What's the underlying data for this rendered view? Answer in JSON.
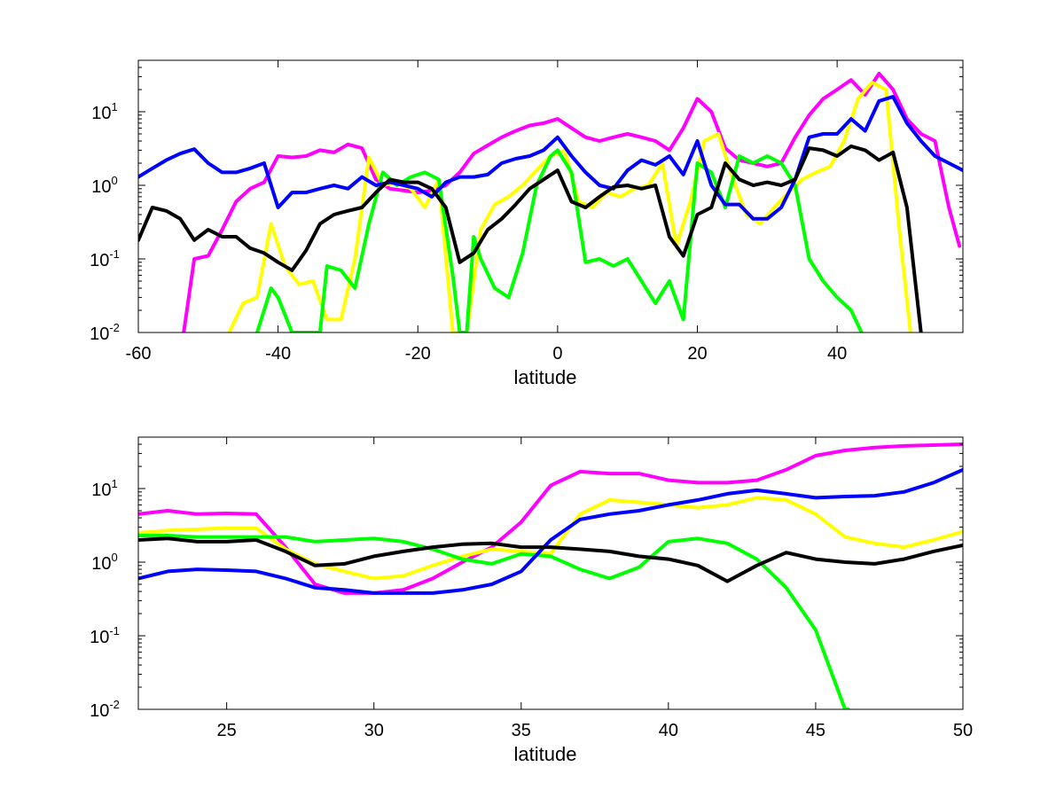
{
  "chart_data": [
    {
      "type": "line",
      "xlabel": "latitude",
      "ylabel": "",
      "title": "",
      "xlim": [
        -60,
        58
      ],
      "ylim": [
        0.01,
        50
      ],
      "yscale": "log",
      "grid": false,
      "x_ticks": [
        {
          "value": -60,
          "label": "-60"
        },
        {
          "value": -40,
          "label": "-40"
        },
        {
          "value": -20,
          "label": "-20"
        },
        {
          "value": 0,
          "label": "0"
        },
        {
          "value": 20,
          "label": "20"
        },
        {
          "value": 40,
          "label": "40"
        }
      ],
      "y_ticks": [
        {
          "value": 0.01,
          "base": "10",
          "exp": "-2"
        },
        {
          "value": 0.1,
          "base": "10",
          "exp": "-1"
        },
        {
          "value": 1,
          "base": "10",
          "exp": "0"
        },
        {
          "value": 10,
          "base": "10",
          "exp": "1"
        }
      ],
      "series": [
        {
          "color": "#ff00ff",
          "x": [
            -53.5,
            -52,
            -50,
            -48,
            -46,
            -44,
            -42,
            -40,
            -38,
            -36,
            -34,
            -32,
            -30,
            -28,
            -26,
            -24,
            -22,
            -20,
            -18,
            -16,
            -14,
            -12,
            -10,
            -8,
            -6,
            -4,
            -2,
            0,
            2,
            4,
            6,
            8,
            10,
            12,
            14,
            16,
            18,
            20,
            22,
            24,
            26,
            28,
            30,
            32,
            34,
            36,
            38,
            40,
            42,
            44,
            46,
            48,
            50,
            52,
            54,
            56,
            57.5
          ],
          "y": [
            0.01,
            0.1,
            0.11,
            0.25,
            0.6,
            0.9,
            1.1,
            2.5,
            2.4,
            2.5,
            3.0,
            2.8,
            3.6,
            3.2,
            1.2,
            0.9,
            0.85,
            0.8,
            0.85,
            1.0,
            1.5,
            2.7,
            3.5,
            4.5,
            5.5,
            6.5,
            7.0,
            8.0,
            6.0,
            4.5,
            4.0,
            4.5,
            5.0,
            4.5,
            4.0,
            3.0,
            6.0,
            15.0,
            10.0,
            3.2,
            2.2,
            2.0,
            1.8,
            2.0,
            4.5,
            9.0,
            15.0,
            20.0,
            27.0,
            17.0,
            33.0,
            20.0,
            8.0,
            5.0,
            4.0,
            0.5,
            0.15
          ]
        },
        {
          "color": "#ffff00",
          "x": [
            -47,
            -45,
            -43,
            -41,
            -39,
            -37,
            -35,
            -33,
            -31,
            -29,
            -27,
            -25,
            -23,
            -21,
            -19,
            -17,
            -15,
            -13,
            -11,
            -9,
            -7,
            -5,
            -3,
            -1,
            1,
            3,
            5,
            7,
            9,
            11,
            13,
            15,
            17,
            19,
            21,
            23,
            25,
            27,
            29,
            31,
            33,
            35,
            37,
            39,
            41,
            43,
            45,
            47,
            49,
            50.5
          ],
          "y": [
            0.01,
            0.025,
            0.03,
            0.3,
            0.08,
            0.045,
            0.05,
            0.015,
            0.015,
            0.1,
            2.4,
            1.0,
            1.1,
            0.9,
            0.5,
            1.2,
            0.01,
            0.01,
            0.25,
            0.55,
            0.7,
            1.0,
            1.6,
            2.5,
            3.0,
            0.6,
            0.5,
            0.8,
            0.7,
            0.9,
            1.0,
            2.0,
            0.15,
            0.6,
            4.0,
            5.0,
            1.3,
            0.4,
            0.3,
            0.5,
            0.8,
            1.2,
            1.5,
            1.8,
            4.0,
            15.0,
            25.0,
            20.0,
            0.2,
            0.01
          ]
        },
        {
          "color": "#00ff00",
          "x": [
            -43,
            -41,
            -40,
            -38,
            -36,
            -34,
            -33,
            -31,
            -29,
            -27,
            -25,
            -23,
            -21,
            -19,
            -17,
            -15,
            -14,
            -13,
            -12,
            -11,
            -9,
            -7,
            -5,
            -3,
            -1,
            0,
            2,
            4,
            6,
            8,
            10,
            12,
            14,
            16,
            18,
            20,
            22,
            24,
            26,
            28,
            30,
            32,
            34,
            36,
            38,
            40,
            42,
            43.5
          ],
          "y": [
            0.01,
            0.04,
            0.03,
            0.01,
            0.01,
            0.01,
            0.08,
            0.07,
            0.04,
            0.3,
            1.5,
            1.0,
            1.3,
            1.5,
            1.2,
            0.06,
            0.01,
            0.01,
            0.2,
            0.1,
            0.04,
            0.03,
            0.12,
            1.0,
            2.5,
            3.0,
            1.5,
            0.09,
            0.1,
            0.08,
            0.1,
            0.05,
            0.025,
            0.05,
            0.015,
            2.0,
            1.5,
            0.5,
            2.5,
            2.0,
            2.5,
            2.0,
            1.0,
            0.1,
            0.05,
            0.03,
            0.02,
            0.01
          ]
        },
        {
          "color": "#0000ff",
          "x": [
            -60,
            -58,
            -56,
            -54,
            -52,
            -50,
            -48,
            -46,
            -44,
            -42,
            -40,
            -38,
            -36,
            -34,
            -32,
            -30,
            -28,
            -26,
            -24,
            -22,
            -20,
            -18,
            -16,
            -14,
            -12,
            -10,
            -8,
            -6,
            -4,
            -2,
            0,
            2,
            4,
            6,
            8,
            10,
            12,
            14,
            16,
            18,
            20,
            22,
            24,
            26,
            28,
            30,
            32,
            34,
            36,
            38,
            40,
            42,
            44,
            46,
            48,
            50,
            52,
            54,
            56,
            58
          ],
          "y": [
            1.3,
            1.7,
            2.2,
            2.7,
            3.1,
            2.0,
            1.5,
            1.5,
            1.7,
            2.0,
            0.5,
            0.8,
            0.8,
            0.9,
            1.0,
            0.9,
            1.3,
            1.0,
            1.1,
            1.0,
            0.9,
            0.7,
            1.1,
            1.3,
            1.3,
            1.4,
            2.0,
            2.3,
            2.5,
            3.0,
            4.5,
            2.5,
            1.5,
            1.0,
            0.9,
            1.6,
            2.2,
            1.9,
            2.5,
            1.4,
            4.0,
            1.0,
            0.55,
            0.55,
            0.35,
            0.35,
            0.5,
            1.2,
            4.5,
            5.0,
            5.0,
            8.0,
            5.5,
            14.0,
            16.0,
            7.0,
            4.0,
            2.5,
            2.0,
            1.6
          ]
        },
        {
          "color": "#000000",
          "x": [
            -60,
            -58,
            -56,
            -54,
            -52,
            -50,
            -48,
            -46,
            -44,
            -42,
            -40,
            -38,
            -36,
            -34,
            -32,
            -30,
            -28,
            -26,
            -24,
            -22,
            -20,
            -18,
            -16,
            -14,
            -12,
            -10,
            -8,
            -6,
            -4,
            -2,
            0,
            2,
            4,
            6,
            8,
            10,
            12,
            14,
            16,
            18,
            20,
            22,
            24,
            26,
            28,
            30,
            32,
            34,
            36,
            38,
            40,
            42,
            44,
            46,
            48,
            50,
            52
          ],
          "y": [
            0.18,
            0.5,
            0.45,
            0.35,
            0.18,
            0.25,
            0.2,
            0.2,
            0.14,
            0.12,
            0.09,
            0.07,
            0.13,
            0.3,
            0.4,
            0.45,
            0.5,
            0.8,
            1.2,
            1.1,
            1.1,
            0.9,
            0.5,
            0.09,
            0.12,
            0.25,
            0.35,
            0.55,
            0.9,
            1.2,
            1.6,
            0.6,
            0.5,
            0.7,
            0.95,
            1.0,
            0.9,
            1.0,
            0.2,
            0.11,
            0.4,
            0.5,
            2.0,
            1.2,
            1.0,
            1.1,
            1.0,
            1.2,
            3.2,
            3.0,
            2.5,
            3.4,
            3.0,
            2.2,
            2.8,
            0.5,
            0.01
          ]
        }
      ]
    },
    {
      "type": "line",
      "xlabel": "latitude",
      "ylabel": "",
      "title": "",
      "xlim": [
        22,
        50
      ],
      "ylim": [
        0.01,
        50
      ],
      "yscale": "log",
      "grid": false,
      "x_ticks": [
        {
          "value": 25,
          "label": "25"
        },
        {
          "value": 30,
          "label": "30"
        },
        {
          "value": 35,
          "label": "35"
        },
        {
          "value": 40,
          "label": "40"
        },
        {
          "value": 45,
          "label": "45"
        },
        {
          "value": 50,
          "label": "50"
        }
      ],
      "y_ticks": [
        {
          "value": 0.01,
          "base": "10",
          "exp": "-2"
        },
        {
          "value": 0.1,
          "base": "10",
          "exp": "-1"
        },
        {
          "value": 1,
          "base": "10",
          "exp": "0"
        },
        {
          "value": 10,
          "base": "10",
          "exp": "1"
        }
      ],
      "series": [
        {
          "color": "#ff00ff",
          "x": [
            22,
            23,
            24,
            25,
            26,
            27,
            28,
            29,
            30,
            31,
            32,
            33,
            34,
            35,
            36,
            37,
            38,
            39,
            40,
            41,
            42,
            43,
            44,
            45,
            46,
            47,
            48,
            49,
            50
          ],
          "y": [
            4.5,
            5.0,
            4.5,
            4.6,
            4.5,
            1.6,
            0.5,
            0.38,
            0.38,
            0.42,
            0.6,
            1.0,
            1.6,
            3.5,
            11.0,
            17.0,
            16.0,
            16.0,
            13.0,
            12.0,
            12.0,
            13.0,
            18.0,
            28.0,
            33.0,
            36.0,
            38.0,
            39.0,
            40.0
          ]
        },
        {
          "color": "#ffff00",
          "x": [
            22,
            23,
            24,
            25,
            26,
            27,
            28,
            29,
            30,
            31,
            32,
            33,
            34,
            35,
            36,
            37,
            38,
            39,
            40,
            41,
            42,
            43,
            44,
            45,
            46,
            47,
            48,
            49,
            50
          ],
          "y": [
            2.5,
            2.7,
            2.8,
            2.9,
            2.9,
            1.5,
            0.95,
            0.75,
            0.6,
            0.65,
            0.9,
            1.2,
            1.5,
            1.4,
            1.3,
            4.5,
            7.0,
            6.5,
            6.0,
            5.5,
            6.0,
            7.5,
            7.0,
            4.5,
            2.2,
            1.8,
            1.6,
            2.0,
            2.6
          ]
        },
        {
          "color": "#00ff00",
          "x": [
            22,
            23,
            24,
            25,
            26,
            27,
            28,
            29,
            30,
            31,
            32,
            33,
            34,
            35,
            36,
            37,
            38,
            39,
            40,
            41,
            42,
            43,
            44,
            45,
            46,
            46.1
          ],
          "y": [
            2.3,
            2.3,
            2.2,
            2.2,
            2.2,
            2.2,
            1.9,
            2.0,
            2.1,
            1.9,
            1.5,
            1.1,
            0.95,
            1.3,
            1.2,
            0.8,
            0.6,
            0.85,
            1.9,
            2.1,
            1.8,
            1.1,
            0.45,
            0.12,
            0.01,
            0.01
          ]
        },
        {
          "color": "#0000ff",
          "x": [
            22,
            23,
            24,
            25,
            26,
            27,
            28,
            29,
            30,
            31,
            32,
            33,
            34,
            35,
            36,
            37,
            38,
            39,
            40,
            41,
            42,
            43,
            44,
            45,
            46,
            47,
            48,
            49,
            50
          ],
          "y": [
            0.6,
            0.75,
            0.8,
            0.78,
            0.75,
            0.6,
            0.45,
            0.42,
            0.38,
            0.38,
            0.38,
            0.42,
            0.5,
            0.75,
            2.0,
            3.8,
            4.5,
            5.0,
            6.0,
            7.0,
            8.5,
            9.5,
            8.5,
            7.5,
            7.8,
            8.0,
            9.0,
            12.0,
            18.0
          ]
        },
        {
          "color": "#000000",
          "x": [
            22,
            23,
            24,
            25,
            26,
            27,
            28,
            29,
            30,
            31,
            32,
            33,
            34,
            35,
            36,
            37,
            38,
            39,
            40,
            41,
            42,
            43,
            44,
            45,
            46,
            47,
            48,
            49,
            50
          ],
          "y": [
            2.0,
            2.1,
            1.9,
            1.9,
            2.0,
            1.4,
            0.9,
            0.95,
            1.2,
            1.4,
            1.6,
            1.75,
            1.8,
            1.6,
            1.6,
            1.5,
            1.4,
            1.2,
            1.1,
            0.9,
            0.55,
            0.9,
            1.35,
            1.1,
            1.0,
            0.95,
            1.1,
            1.4,
            1.7
          ]
        }
      ]
    }
  ]
}
